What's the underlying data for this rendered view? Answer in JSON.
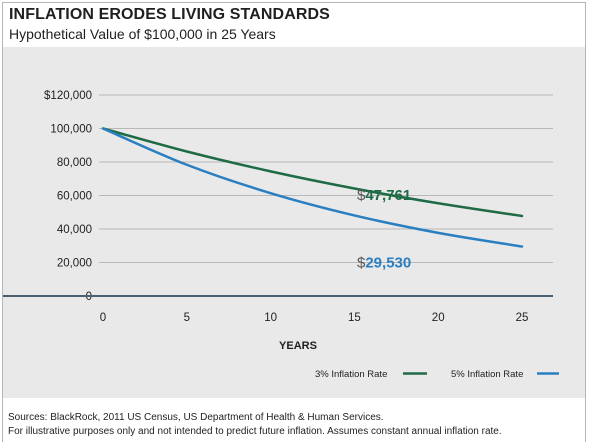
{
  "header": {
    "title": "INFLATION ERODES LIVING STANDARDS",
    "subtitle": "Hypothetical Value of $100,000 in 25 Years"
  },
  "footer": {
    "sources": "Sources: BlackRock, 2011 US Census, US Department of Health & Human Services.",
    "disclaimer": "For illustrative purposes only and not intended to predict future inflation. Assumes constant annual inflation rate."
  },
  "colors": {
    "series_3pct": "#1e6b45",
    "series_5pct": "#2a7fc1",
    "panel_bg": "#e9e9e9",
    "gridline": "#b8b8b8",
    "axis": "#4a6070"
  },
  "chart_data": {
    "type": "line",
    "title": "INFLATION ERODES LIVING STANDARDS",
    "subtitle": "Hypothetical Value of $100,000 in 25 Years",
    "xlabel": "YEARS",
    "ylabel": "",
    "xlim": [
      0,
      25
    ],
    "ylim": [
      0,
      120000
    ],
    "x_ticks": [
      "0",
      "5",
      "10",
      "15",
      "20",
      "25"
    ],
    "y_ticks": [
      "0",
      "20,000",
      "40,000",
      "60,000",
      "80,000",
      "100,000",
      "$120,000"
    ],
    "grid": true,
    "legend_position": "bottom-right",
    "x": [
      0,
      5,
      10,
      15,
      20,
      25
    ],
    "series": [
      {
        "name": "3% Inflation Rate",
        "color": "#1e6b45",
        "values": [
          100000,
          86261,
          74409,
          64186,
          55368,
          47761
        ],
        "end_label_prefix": "$",
        "end_label_value": "47,761"
      },
      {
        "name": "5% Inflation Rate",
        "color": "#2a7fc1",
        "values": [
          100000,
          78353,
          61391,
          48102,
          37689,
          29530
        ],
        "end_label_prefix": "$",
        "end_label_value": "29,530"
      }
    ]
  }
}
